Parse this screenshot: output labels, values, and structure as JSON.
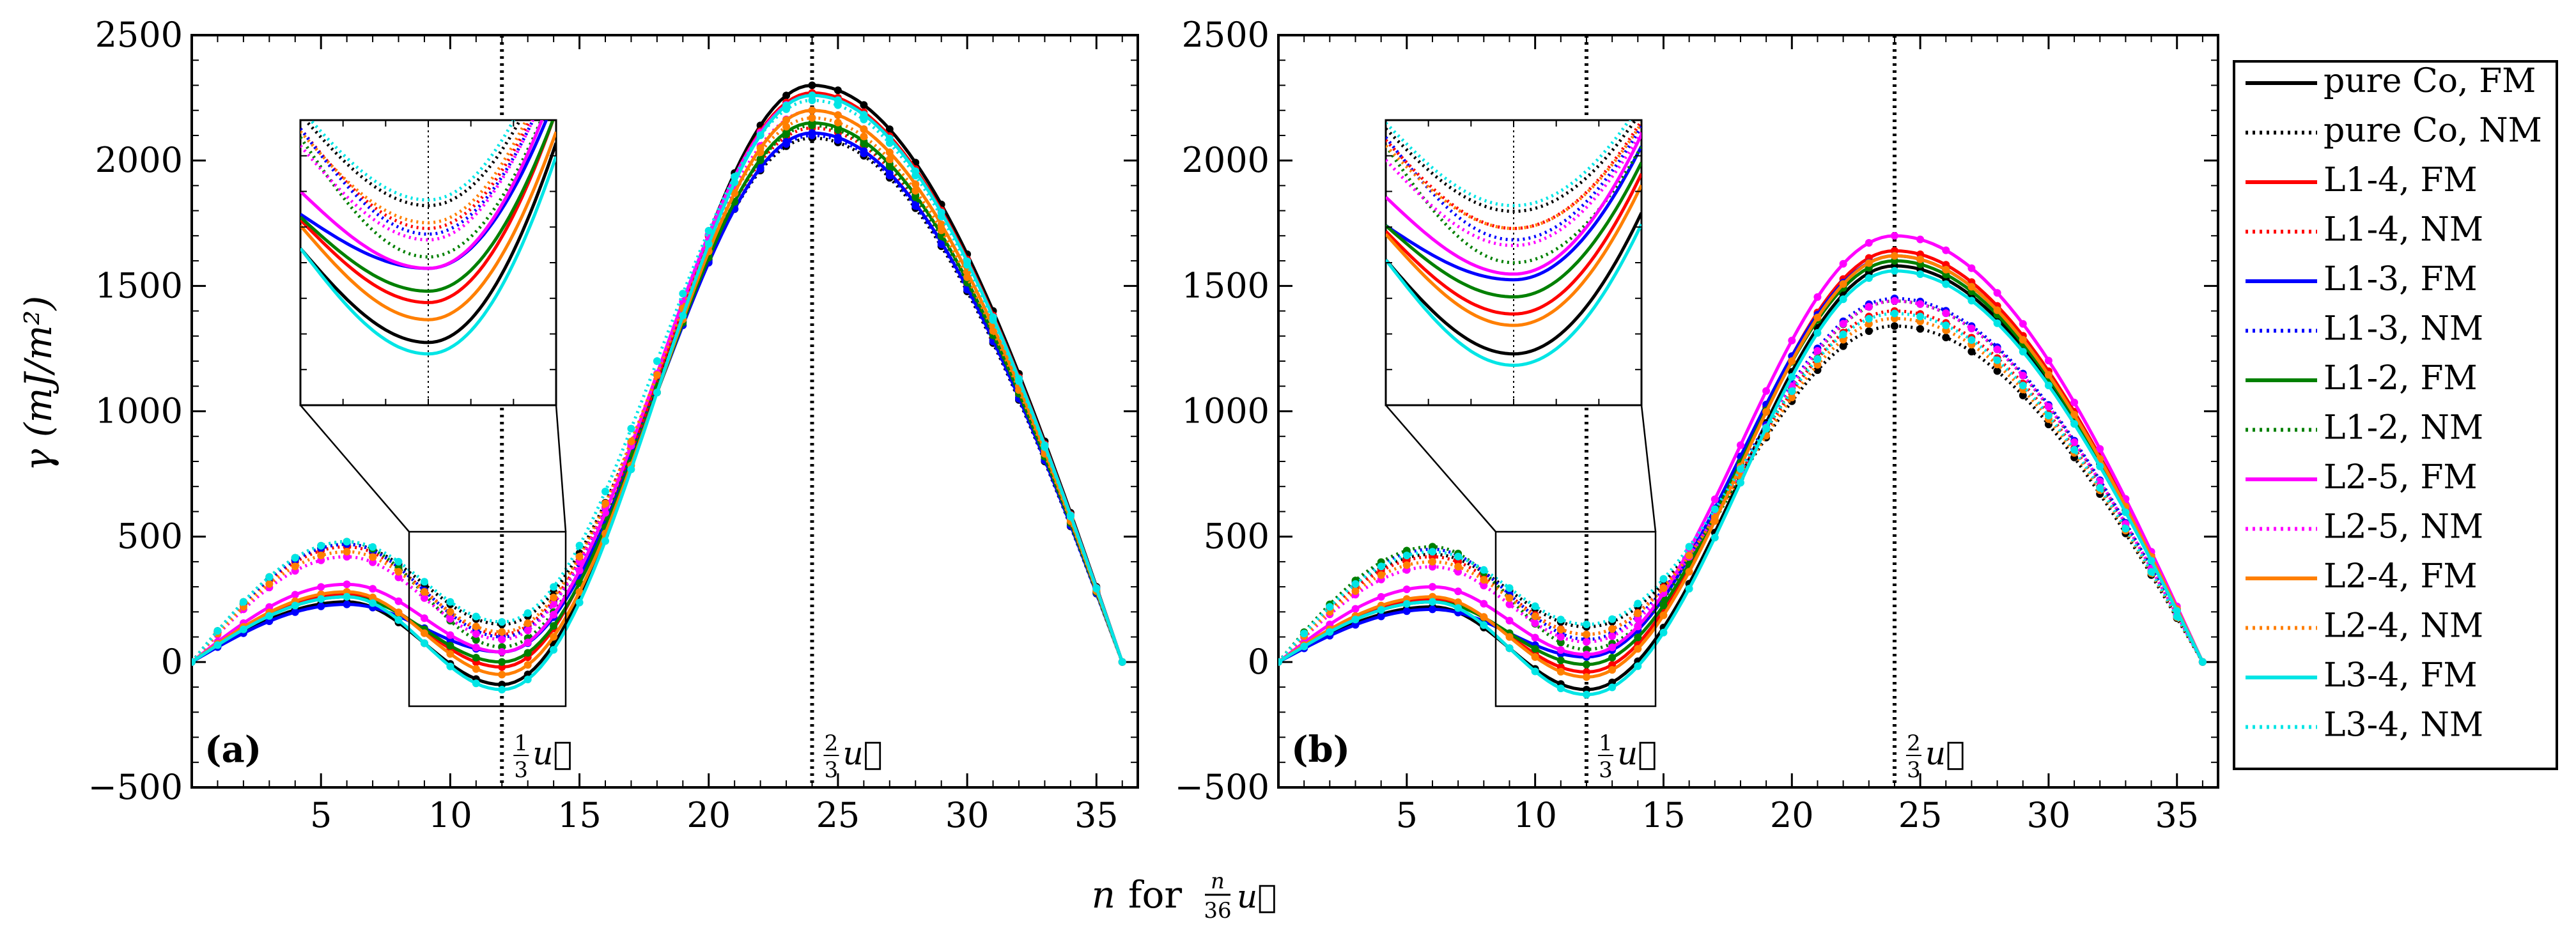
{
  "figure": {
    "ylabel": "γ (mJ/m²)",
    "xlabel_main": "n",
    "xlabel_for": "for",
    "xlabel_frac_num": "n",
    "xlabel_frac_den": "36",
    "xlabel_vec": "u⃗",
    "marker_third": "1/3",
    "marker_twothirds": "2/3",
    "marker_vec": "u⃗"
  },
  "chart_data": [
    {
      "type": "line",
      "panel": "(a)",
      "x": [
        0,
        1,
        2,
        3,
        4,
        5,
        6,
        7,
        8,
        9,
        10,
        11,
        12,
        13,
        14,
        15,
        16,
        17,
        18,
        19,
        20,
        21,
        22,
        23,
        24,
        25,
        26,
        27,
        28,
        29,
        30,
        31,
        32,
        33,
        34,
        35,
        36
      ],
      "xlim": [
        0,
        36.6
      ],
      "ylim": [
        -500,
        2500
      ],
      "xticks": [
        5,
        10,
        15,
        20,
        25,
        30,
        35
      ],
      "yticks": [
        -500,
        0,
        500,
        1000,
        1500,
        2000,
        2500
      ],
      "vlines": [
        12,
        24
      ],
      "series": [
        {
          "name": "pure Co, FM",
          "color": "#000000",
          "style": "solid",
          "peak1": 240,
          "mid": -90,
          "peak2": 2300
        },
        {
          "name": "pure Co, NM",
          "color": "#000000",
          "style": "dotted",
          "peak1": 470,
          "mid": 150,
          "peak2": 2090
        },
        {
          "name": "L1-4, FM",
          "color": "#ff0000",
          "style": "solid",
          "peak1": 270,
          "mid": -20,
          "peak2": 2270
        },
        {
          "name": "L1-4, NM",
          "color": "#ff0000",
          "style": "dotted",
          "peak1": 460,
          "mid": 110,
          "peak2": 2130
        },
        {
          "name": "L1-3, FM",
          "color": "#0000ff",
          "style": "solid",
          "peak1": 230,
          "mid": 40,
          "peak2": 2110
        },
        {
          "name": "L1-3, NM",
          "color": "#0000ff",
          "style": "dotted",
          "peak1": 470,
          "mid": 100,
          "peak2": 2100
        },
        {
          "name": "L1-2, FM",
          "color": "#008000",
          "style": "solid",
          "peak1": 260,
          "mid": 0,
          "peak2": 2150
        },
        {
          "name": "L1-2, NM",
          "color": "#008000",
          "style": "dotted",
          "peak1": 480,
          "mid": 60,
          "peak2": 2140
        },
        {
          "name": "L2-5, FM",
          "color": "#ff00ff",
          "style": "solid",
          "peak1": 310,
          "mid": 40,
          "peak2": 2260
        },
        {
          "name": "L2-5, NM",
          "color": "#ff00ff",
          "style": "dotted",
          "peak1": 420,
          "mid": 90,
          "peak2": 2200
        },
        {
          "name": "L2-4, FM",
          "color": "#ff7f00",
          "style": "solid",
          "peak1": 280,
          "mid": -50,
          "peak2": 2200
        },
        {
          "name": "L2-4, NM",
          "color": "#ff7f00",
          "style": "dotted",
          "peak1": 440,
          "mid": 120,
          "peak2": 2170
        },
        {
          "name": "L3-4, FM",
          "color": "#00e5e5",
          "style": "solid",
          "peak1": 260,
          "mid": -110,
          "peak2": 2260
        },
        {
          "name": "L3-4, NM",
          "color": "#00e5e5",
          "style": "dotted",
          "peak1": 480,
          "mid": 160,
          "peak2": 2240
        }
      ]
    },
    {
      "type": "line",
      "panel": "(b)",
      "x": [
        0,
        1,
        2,
        3,
        4,
        5,
        6,
        7,
        8,
        9,
        10,
        11,
        12,
        13,
        14,
        15,
        16,
        17,
        18,
        19,
        20,
        21,
        22,
        23,
        24,
        25,
        26,
        27,
        28,
        29,
        30,
        31,
        32,
        33,
        34,
        35,
        36
      ],
      "xlim": [
        0,
        36.6
      ],
      "ylim": [
        -500,
        2500
      ],
      "xticks": [
        5,
        10,
        15,
        20,
        25,
        30,
        35
      ],
      "yticks": [
        -500,
        0,
        500,
        1000,
        1500,
        2000,
        2500
      ],
      "vlines": [
        12,
        24
      ],
      "series": [
        {
          "name": "pure Co, FM",
          "color": "#000000",
          "style": "solid",
          "peak1": 220,
          "mid": -110,
          "peak2": 1580
        },
        {
          "name": "pure Co, NM",
          "color": "#000000",
          "style": "dotted",
          "peak1": 430,
          "mid": 140,
          "peak2": 1340
        },
        {
          "name": "L1-4, FM",
          "color": "#ff0000",
          "style": "solid",
          "peak1": 250,
          "mid": -40,
          "peak2": 1640
        },
        {
          "name": "L1-4, NM",
          "color": "#ff0000",
          "style": "dotted",
          "peak1": 420,
          "mid": 110,
          "peak2": 1400
        },
        {
          "name": "L1-3, FM",
          "color": "#0000ff",
          "style": "solid",
          "peak1": 210,
          "mid": 20,
          "peak2": 1620
        },
        {
          "name": "L1-3, NM",
          "color": "#0000ff",
          "style": "dotted",
          "peak1": 450,
          "mid": 90,
          "peak2": 1450
        },
        {
          "name": "L1-2, FM",
          "color": "#008000",
          "style": "solid",
          "peak1": 240,
          "mid": -10,
          "peak2": 1600
        },
        {
          "name": "L1-2, NM",
          "color": "#008000",
          "style": "dotted",
          "peak1": 460,
          "mid": 50,
          "peak2": 1440
        },
        {
          "name": "L2-5, FM",
          "color": "#ff00ff",
          "style": "solid",
          "peak1": 300,
          "mid": 30,
          "peak2": 1700
        },
        {
          "name": "L2-5, NM",
          "color": "#ff00ff",
          "style": "dotted",
          "peak1": 380,
          "mid": 80,
          "peak2": 1440
        },
        {
          "name": "L2-4, FM",
          "color": "#ff7f00",
          "style": "solid",
          "peak1": 260,
          "mid": -60,
          "peak2": 1620
        },
        {
          "name": "L2-4, NM",
          "color": "#ff7f00",
          "style": "dotted",
          "peak1": 400,
          "mid": 110,
          "peak2": 1370
        },
        {
          "name": "L3-4, FM",
          "color": "#00e5e5",
          "style": "solid",
          "peak1": 240,
          "mid": -130,
          "peak2": 1560
        },
        {
          "name": "L3-4, NM",
          "color": "#00e5e5",
          "style": "dotted",
          "peak1": 440,
          "mid": 150,
          "peak2": 1390
        }
      ]
    }
  ]
}
